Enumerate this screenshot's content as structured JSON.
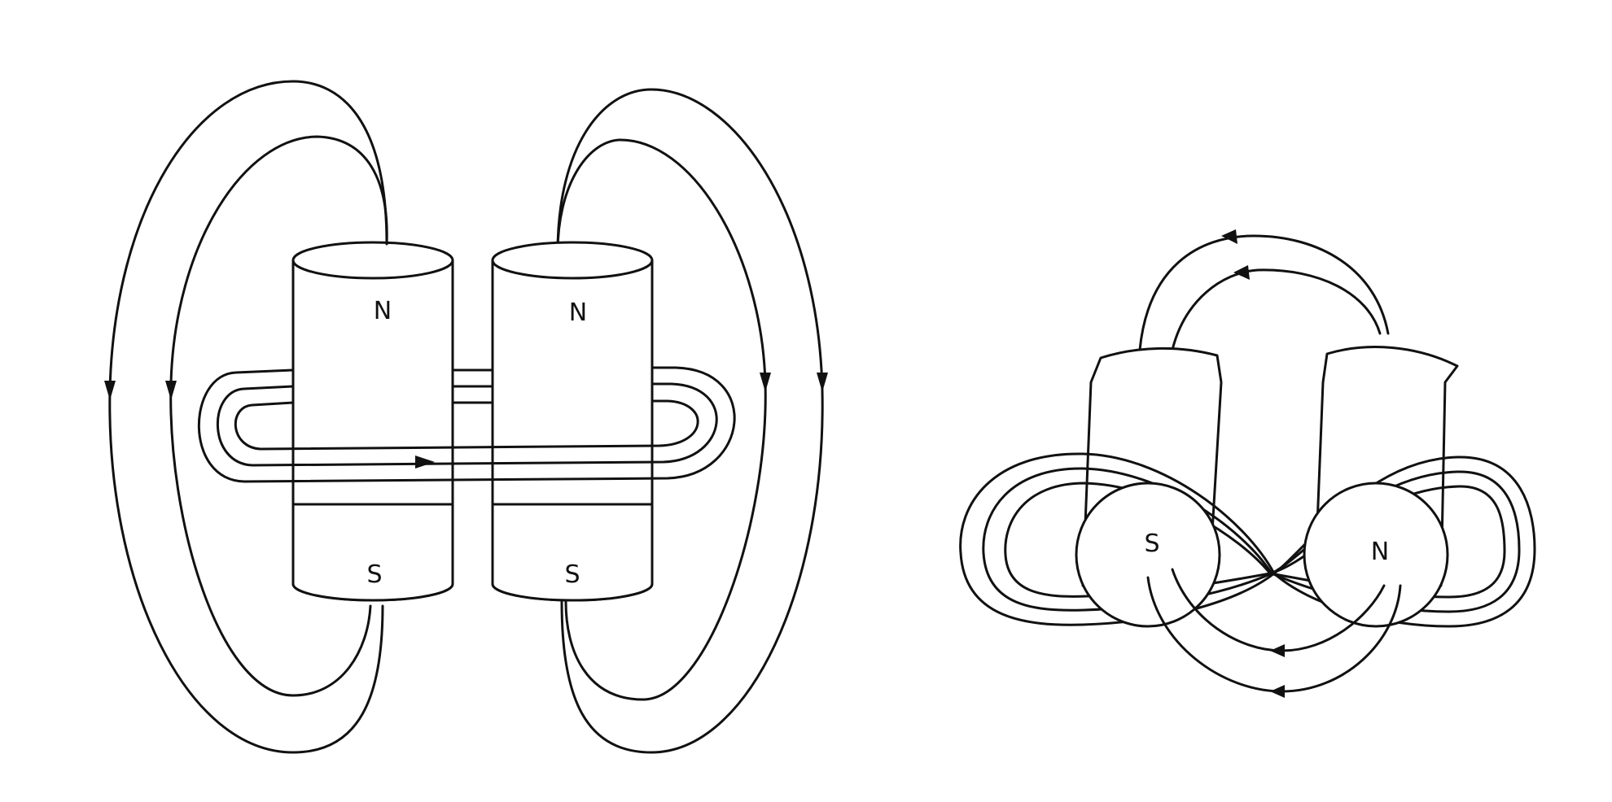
{
  "left_figure": {
    "magnet_left": {
      "top_pole": "N",
      "bottom_pole": "S"
    },
    "magnet_right": {
      "top_pole": "N",
      "bottom_pole": "S"
    }
  },
  "right_figure": {
    "magnet_left": {
      "bottom_pole": "S"
    },
    "magnet_right": {
      "bottom_pole": "N"
    }
  },
  "colors": {
    "ink": "#111111",
    "paper": "#ffffff"
  }
}
